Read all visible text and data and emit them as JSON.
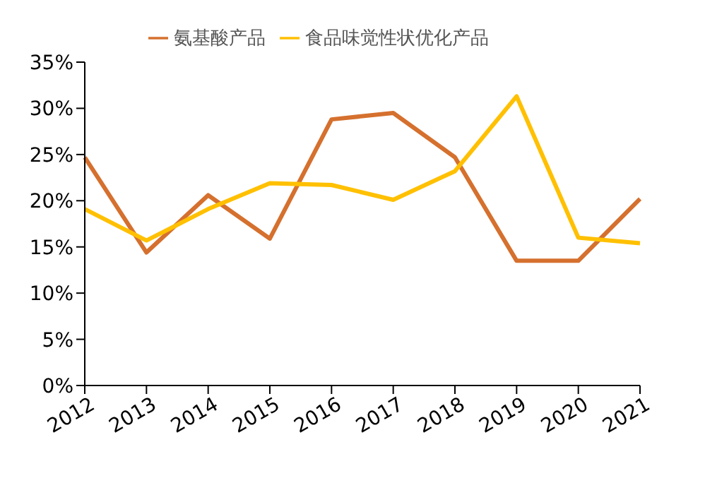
{
  "chart_data": {
    "type": "line",
    "categories": [
      "2012",
      "2013",
      "2014",
      "2015",
      "2016",
      "2017",
      "2018",
      "2019",
      "2020",
      "2021"
    ],
    "series": [
      {
        "name": "氨基酸产品",
        "color": "#d5702e",
        "values": [
          24.7,
          14.4,
          20.6,
          15.9,
          28.8,
          29.5,
          24.7,
          13.5,
          13.5,
          20.2
        ]
      },
      {
        "name": "食品味觉性状优化产品",
        "color": "#ffc000",
        "values": [
          19.1,
          15.7,
          19.1,
          21.9,
          21.7,
          20.1,
          23.2,
          31.3,
          16.0,
          15.4
        ]
      }
    ],
    "ylim": [
      0,
      35
    ],
    "yticks": [
      {
        "value": 0,
        "label": "0%"
      },
      {
        "value": 5,
        "label": "5%"
      },
      {
        "value": 10,
        "label": "10%"
      },
      {
        "value": 15,
        "label": "15%"
      },
      {
        "value": 20,
        "label": "20%"
      },
      {
        "value": 25,
        "label": "25%"
      },
      {
        "value": 30,
        "label": "30%"
      },
      {
        "value": 35,
        "label": "35%"
      }
    ],
    "grid": false,
    "legend": "top",
    "marker": "none",
    "line_style": "solid"
  }
}
